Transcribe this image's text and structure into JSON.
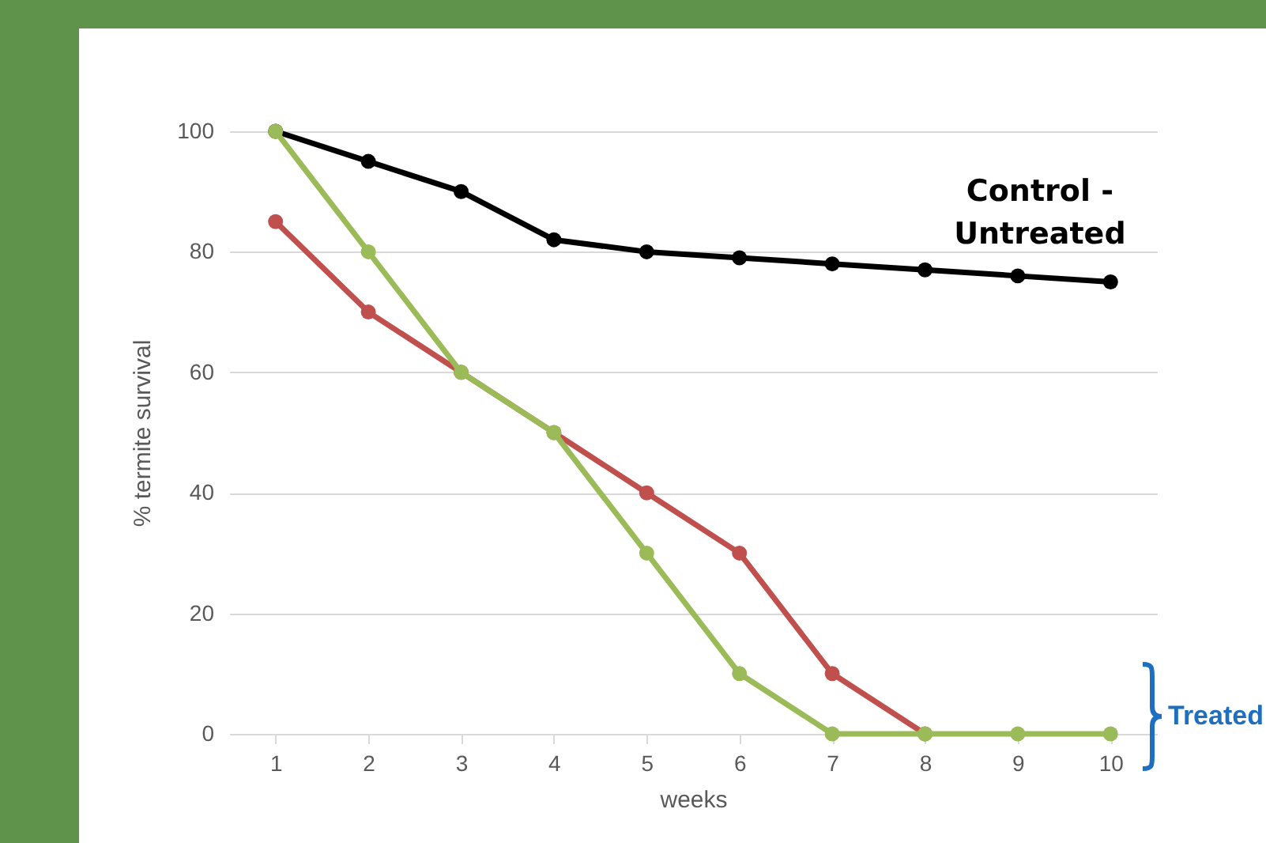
{
  "chart_data": {
    "type": "line",
    "xlabel": "weeks",
    "ylabel": "% termite survival",
    "categories": [
      "1",
      "2",
      "3",
      "4",
      "5",
      "6",
      "7",
      "8",
      "9",
      "10"
    ],
    "series": [
      {
        "name": "Control - Untreated",
        "color": "#000000",
        "values": [
          100,
          95,
          90,
          82,
          80,
          79,
          78,
          77,
          76,
          75
        ]
      },
      {
        "color": "#c0504d",
        "values": [
          85,
          70,
          60,
          50,
          40,
          30,
          10,
          0,
          null,
          null
        ]
      },
      {
        "color": "#9bbb59",
        "values": [
          100,
          80,
          60,
          50,
          30,
          10,
          0,
          0,
          0,
          0
        ]
      }
    ],
    "ylim": [
      0,
      100
    ],
    "yticks": [
      0,
      20,
      40,
      60,
      80,
      100
    ],
    "grid": "y",
    "marker": "circle",
    "line_style": "solid",
    "annotations": [
      "Treated"
    ]
  }
}
